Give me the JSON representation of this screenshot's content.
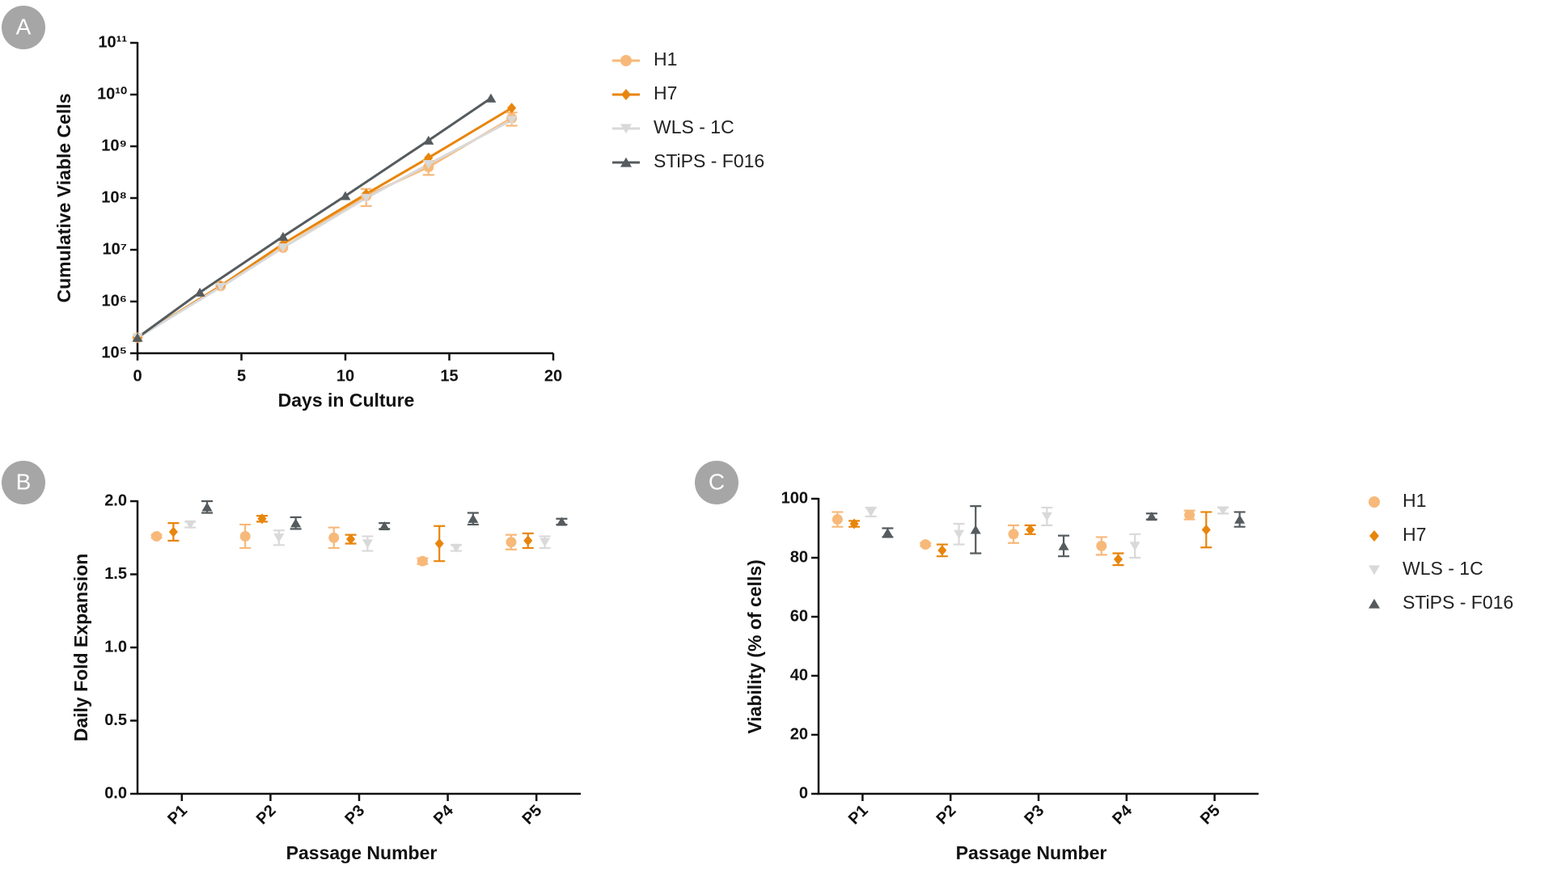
{
  "chart_data": [
    {
      "type": "line",
      "panel_label": "A",
      "yscale": "log",
      "legend": "right",
      "xlabel": "Days in Culture",
      "ylabel": "Cumulative Viable Cells",
      "xlim": [
        0,
        20
      ],
      "xticks": [
        0,
        5,
        10,
        15,
        20
      ],
      "ylim": [
        100000,
        100000000000
      ],
      "yticks": [
        {
          "value": 100000,
          "label": "10⁵"
        },
        {
          "value": 1000000,
          "label": "10⁶"
        },
        {
          "value": 10000000,
          "label": "10⁷"
        },
        {
          "value": 100000000,
          "label": "10⁸"
        },
        {
          "value": 1000000000,
          "label": "10⁹"
        },
        {
          "value": 10000000000,
          "label": "10¹⁰"
        },
        {
          "value": 100000000000,
          "label": "10¹¹"
        }
      ],
      "series": [
        {
          "name": "H1",
          "color": "#f7b97a",
          "marker": "circle",
          "x": [
            0,
            4,
            7,
            11,
            14,
            18
          ],
          "values": [
            200000,
            2000000,
            11000000,
            110000000,
            400000000,
            3500000000
          ],
          "errors": [
            0,
            0,
            0,
            40000000,
            120000000,
            1000000000
          ]
        },
        {
          "name": "H7",
          "color": "#e8850c",
          "marker": "diamond",
          "x": [
            0,
            4,
            7,
            11,
            14,
            18
          ],
          "values": [
            200000,
            2000000,
            13000000,
            120000000,
            600000000,
            5500000000
          ]
        },
        {
          "name": "WLS - 1C",
          "color": "#d9d9d9",
          "marker": "triangle-down",
          "x": [
            0,
            4,
            7,
            11,
            14,
            18
          ],
          "values": [
            200000,
            1900000,
            11000000,
            100000000,
            450000000,
            3200000000
          ]
        },
        {
          "name": "STiPS - F016",
          "color": "#555b5e",
          "marker": "triangle-up",
          "x": [
            0,
            3,
            7,
            10,
            14,
            17
          ],
          "values": [
            200000,
            1500000,
            18000000,
            110000000,
            1300000000,
            8500000000
          ]
        }
      ]
    },
    {
      "type": "scatter",
      "panel_label": "B",
      "xlabel": "Passage Number",
      "ylabel": "Daily Fold  Expansion",
      "categories": [
        "P1",
        "P2",
        "P3",
        "P4",
        "P5"
      ],
      "ylim": [
        0,
        2
      ],
      "yticks": [
        {
          "value": 0,
          "label": "0.0"
        },
        {
          "value": 0.5,
          "label": "0.5"
        },
        {
          "value": 1,
          "label": "1.0"
        },
        {
          "value": 1.5,
          "label": "1.5"
        },
        {
          "value": 2,
          "label": "2.0"
        }
      ],
      "series": [
        {
          "name": "H1",
          "color": "#f7b97a",
          "marker": "circle",
          "values": [
            1.76,
            1.76,
            1.75,
            1.59,
            1.72
          ],
          "errors": [
            0.01,
            0.08,
            0.07,
            0.02,
            0.05
          ]
        },
        {
          "name": "H7",
          "color": "#e8850c",
          "marker": "diamond",
          "values": [
            1.79,
            1.88,
            1.74,
            1.71,
            1.73
          ],
          "errors": [
            0.06,
            0.02,
            0.03,
            0.12,
            0.05
          ]
        },
        {
          "name": "WLS - 1C",
          "color": "#d9d9d9",
          "marker": "triangle-down",
          "values": [
            1.84,
            1.75,
            1.71,
            1.68,
            1.72
          ],
          "errors": [
            0.02,
            0.05,
            0.05,
            0.02,
            0.04
          ]
        },
        {
          "name": "STiPS - F016",
          "color": "#555b5e",
          "marker": "triangle-up",
          "values": [
            1.96,
            1.85,
            1.83,
            1.88,
            1.86
          ],
          "errors": [
            0.04,
            0.04,
            0.02,
            0.04,
            0.02
          ]
        }
      ]
    },
    {
      "type": "scatter",
      "panel_label": "C",
      "legend": "right",
      "xlabel": "Passage Number",
      "ylabel": "Viability (% of cells)",
      "categories": [
        "P1",
        "P2",
        "P3",
        "P4",
        "P5"
      ],
      "ylim": [
        0,
        100
      ],
      "yticks": [
        0,
        20,
        40,
        60,
        80,
        100
      ],
      "series": [
        {
          "name": "H1",
          "color": "#f7b97a",
          "marker": "circle",
          "values": [
            93,
            84.5,
            88,
            84,
            94.5
          ],
          "errors": [
            2.5,
            0.5,
            3,
            3,
            1.5
          ]
        },
        {
          "name": "H7",
          "color": "#e8850c",
          "marker": "diamond",
          "values": [
            91.5,
            82.5,
            89.5,
            79.5,
            89.5
          ],
          "errors": [
            1,
            2,
            1.5,
            2,
            6
          ]
        },
        {
          "name": "WLS - 1C",
          "color": "#d9d9d9",
          "marker": "triangle-down",
          "values": [
            95.5,
            88,
            94,
            84,
            96
          ],
          "errors": [
            1.5,
            3.5,
            3,
            4,
            1
          ]
        },
        {
          "name": "STiPS - F016",
          "color": "#555b5e",
          "marker": "triangle-up",
          "values": [
            88.5,
            89.5,
            84,
            94,
            93
          ],
          "errors": [
            1.5,
            8,
            3.5,
            1,
            2.5
          ]
        }
      ]
    }
  ]
}
